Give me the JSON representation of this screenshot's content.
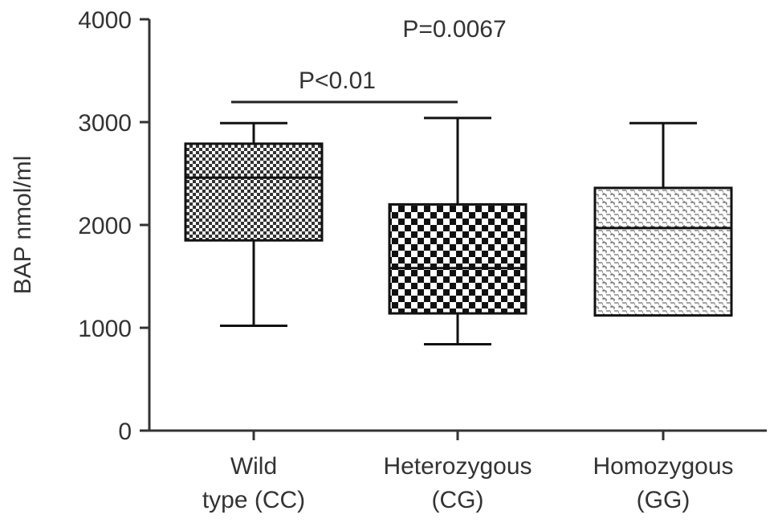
{
  "chart_data": {
    "type": "box",
    "ylabel": "BAP nmol/ml",
    "ylim": [
      0,
      4000
    ],
    "yticks": [
      0,
      1000,
      2000,
      3000,
      4000
    ],
    "categories": [
      {
        "lines": [
          "Wild",
          "type (CC)"
        ]
      },
      {
        "lines": [
          "Heterozygous",
          "(CG)"
        ]
      },
      {
        "lines": [
          "Homozygous",
          "(GG)"
        ]
      }
    ],
    "boxes": [
      {
        "whisker_low": 1020,
        "q1": 1850,
        "median": 2460,
        "q3": 2790,
        "whisker_high": 2990,
        "pattern": "checker-fine"
      },
      {
        "whisker_low": 840,
        "q1": 1140,
        "median": 1580,
        "q3": 2200,
        "whisker_high": 3040,
        "pattern": "checker-coarse"
      },
      {
        "whisker_low": null,
        "q1": 1120,
        "median": 1970,
        "q3": 2360,
        "whisker_high": 2990,
        "pattern": "brick"
      }
    ],
    "annotations": [
      {
        "text": "P=0.0067",
        "kind": "overall"
      },
      {
        "text": "P<0.01",
        "kind": "bracket",
        "from": 0,
        "to": 1
      }
    ]
  }
}
